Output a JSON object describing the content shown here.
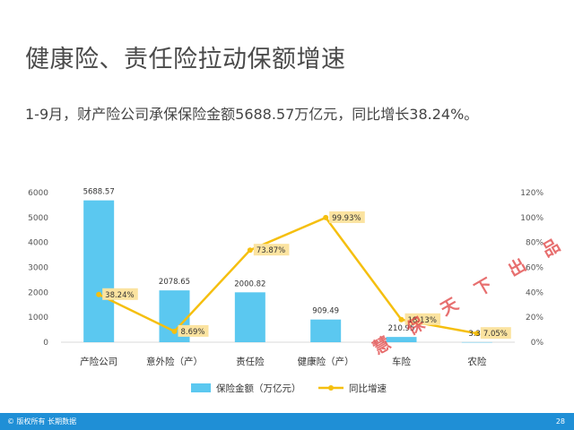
{
  "page": {
    "title": "健康险、责任险拉动保额增速",
    "subtitle": "1-9月，财产险公司承保保险金额5688.57万亿元，同比增长38.24%。",
    "footer_left": "© 版权所有 长期数据",
    "footer_right": "28",
    "watermark": "慧 保 天 下 出 品"
  },
  "colors": {
    "bar": "#5bc8f0",
    "line": "#f5bf0f",
    "label_bg": "#fbe3a0",
    "axis_text": "#555555",
    "grid": "#d9d9d9"
  },
  "chart_data": {
    "type": "bar",
    "categories": [
      "产险公司",
      "意外险（产）",
      "责任险",
      "健康险（产）",
      "车险",
      "农险"
    ],
    "series": [
      {
        "name": "保险金额（万亿元）",
        "type": "bar",
        "axis": "left",
        "values": [
          5688.57,
          2078.65,
          2000.82,
          909.49,
          210.95,
          3.31
        ],
        "labels": [
          "5688.57",
          "2078.65",
          "2000.82",
          "909.49",
          "210.95",
          "3.31"
        ]
      },
      {
        "name": "同比增速",
        "type": "line",
        "axis": "right",
        "values": [
          38.24,
          8.69,
          73.87,
          99.93,
          18.13,
          7.05
        ],
        "labels": [
          "38.24%",
          "8.69%",
          "73.87%",
          "99.93%",
          "18.13%",
          "7.05%"
        ]
      }
    ],
    "y_left": {
      "min": 0,
      "max": 6000,
      "ticks": [
        "0",
        "1000",
        "2000",
        "3000",
        "4000",
        "5000",
        "6000"
      ]
    },
    "y_right": {
      "min": 0,
      "max": 120,
      "ticks": [
        "0%",
        "20%",
        "40%",
        "60%",
        "80%",
        "100%",
        "120%"
      ]
    },
    "legend": {
      "position": "bottom"
    },
    "grid": false
  }
}
